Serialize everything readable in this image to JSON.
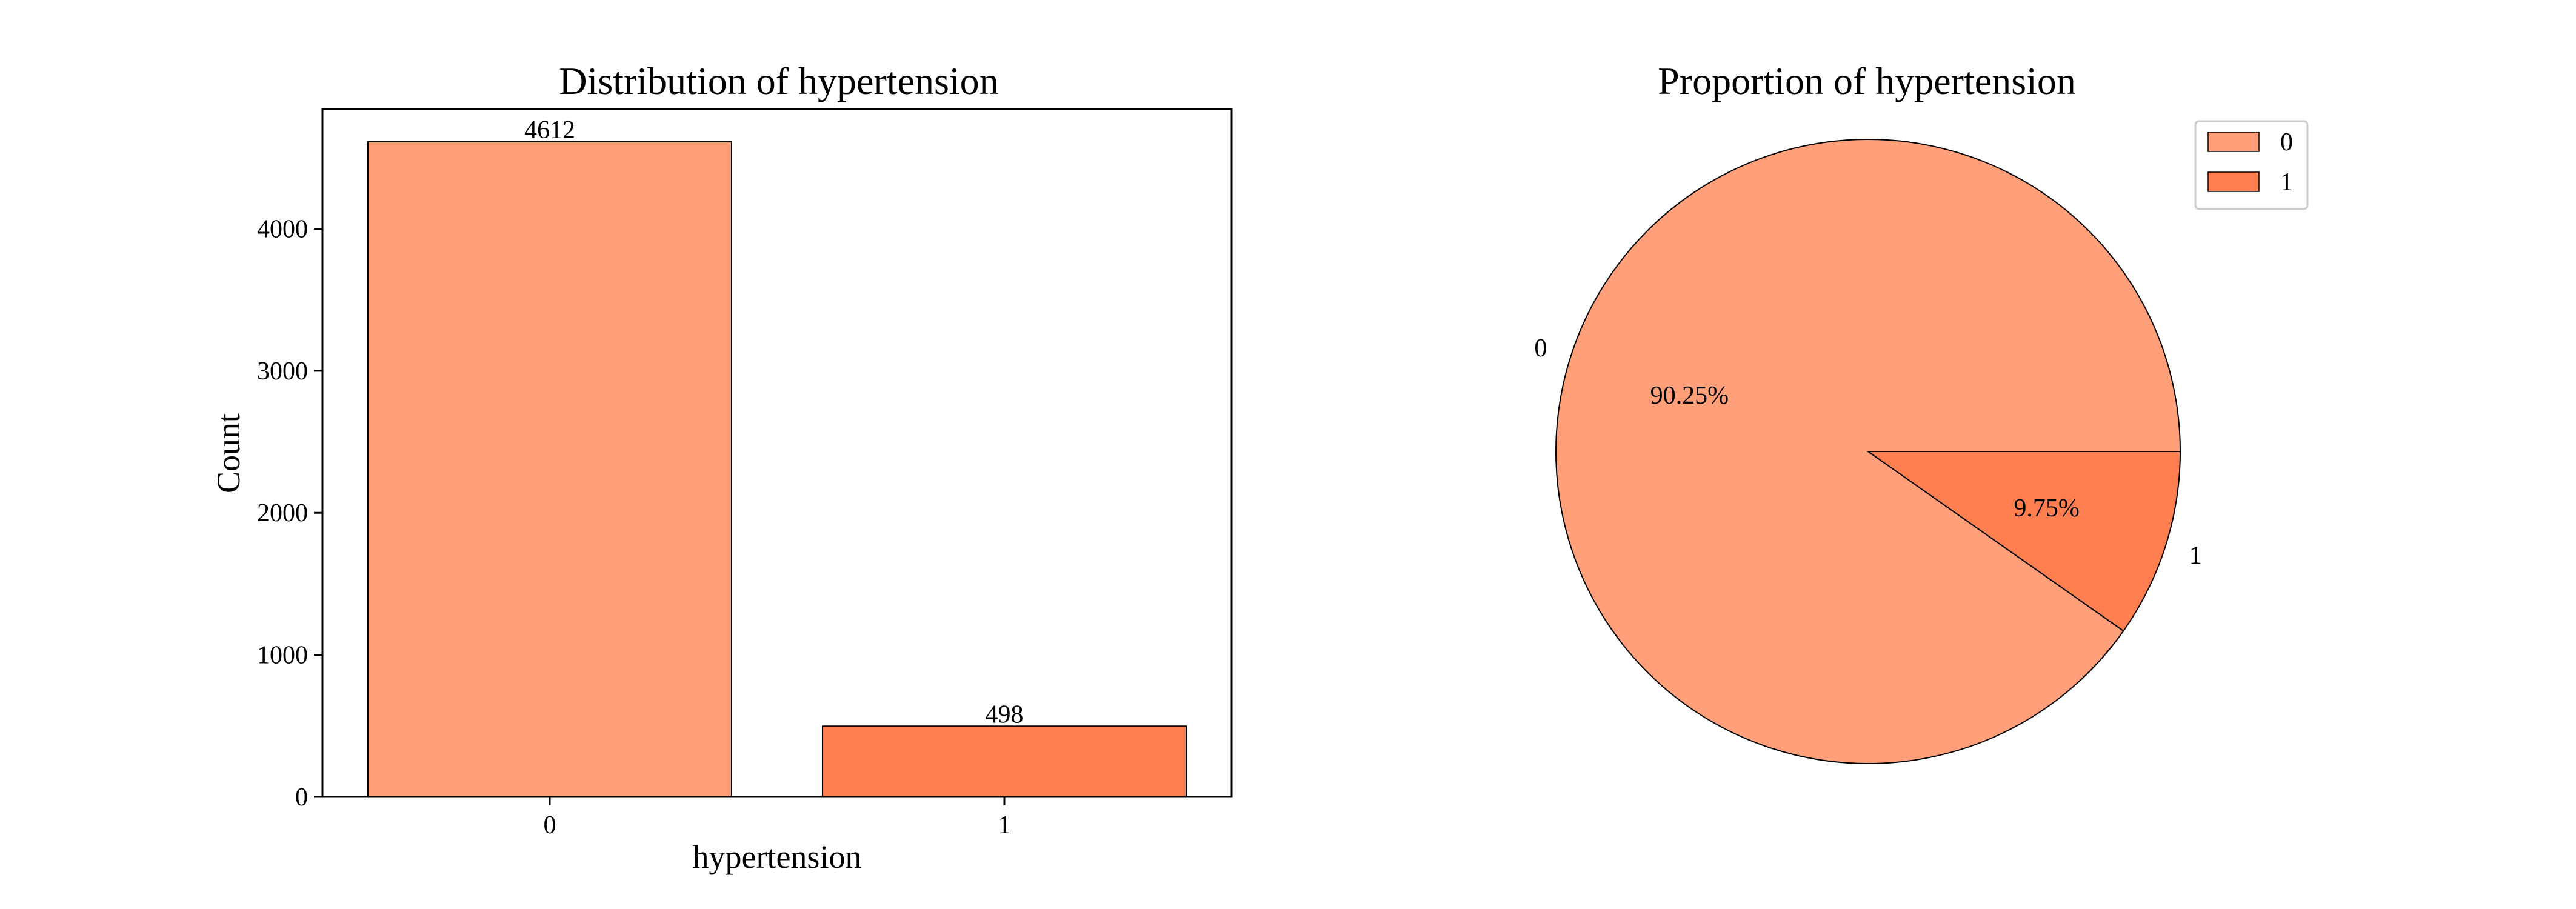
{
  "colors": {
    "category_0": "#FFA07A",
    "category_1": "#FF7F50",
    "edge": "#000000",
    "background": "#ffffff"
  },
  "chart_data": [
    {
      "type": "bar",
      "title": "Distribution of hypertension",
      "xlabel": "hypertension",
      "ylabel": "Count",
      "categories": [
        "0",
        "1"
      ],
      "values": [
        4612,
        498
      ],
      "data_labels": [
        "4612",
        "498"
      ],
      "yticks": [
        0,
        1000,
        2000,
        3000,
        4000
      ],
      "ytick_labels": [
        "0",
        "1000",
        "2000",
        "3000",
        "4000"
      ],
      "ylim": [
        0,
        4842.6
      ],
      "grid": false
    },
    {
      "type": "pie",
      "title": "Proportion of hypertension",
      "labels": [
        "0",
        "1"
      ],
      "values": [
        90.25,
        9.75
      ],
      "pct_labels": [
        "90.25%",
        "9.75%"
      ],
      "legend": {
        "entries": [
          "0",
          "1"
        ],
        "placement": "top-right"
      }
    }
  ]
}
